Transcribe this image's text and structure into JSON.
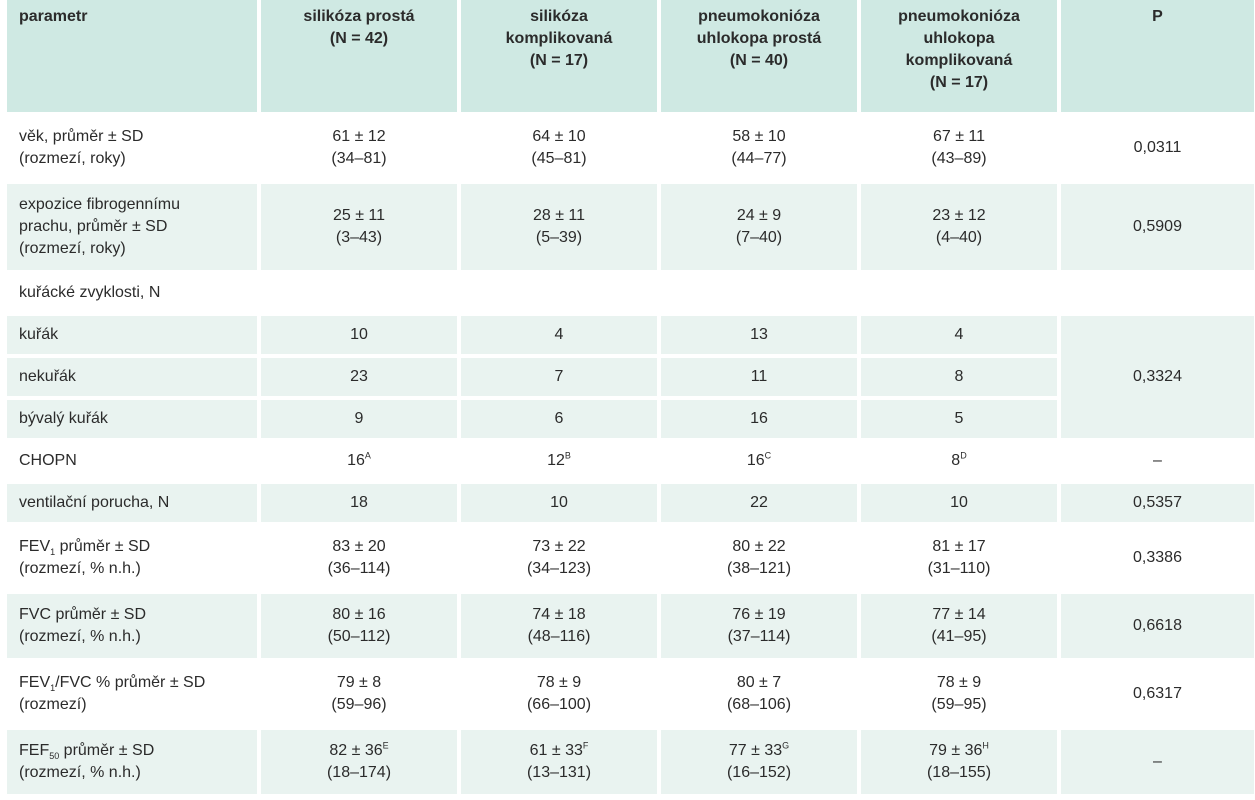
{
  "header": {
    "parameter": "parametr",
    "groups": [
      {
        "name_lines": [
          "silikóza prostá"
        ],
        "n": "(N = 42)"
      },
      {
        "name_lines": [
          "silikóza",
          "komplikovaná"
        ],
        "n": "(N = 17)"
      },
      {
        "name_lines": [
          "pneumokonióza",
          "uhlokopa prostá"
        ],
        "n": "(N = 40)"
      },
      {
        "name_lines": [
          "pneumokonióza",
          "uhlokopa",
          "komplikovaná"
        ],
        "n": "(N = 17)"
      }
    ],
    "p": "P"
  },
  "rows": {
    "age": {
      "label_lines": [
        "věk, průměr ± SD",
        "(rozmezí, roky)"
      ],
      "values": [
        [
          "61 ± 12",
          "(34–81)"
        ],
        [
          "64 ± 10",
          "(45–81)"
        ],
        [
          "58 ± 10",
          "(44–77)"
        ],
        [
          "67 ± 11",
          "(43–89)"
        ]
      ],
      "p": "0,0311"
    },
    "exposure": {
      "label_lines": [
        "expozice fibrogennímu",
        "prachu, průměr ± SD",
        "(rozmezí, roky)"
      ],
      "values": [
        [
          "25 ± 11",
          "(3–43)"
        ],
        [
          "28 ± 11",
          "(5–39)"
        ],
        [
          "24 ± 9",
          "(7–40)"
        ],
        [
          "23 ± 12",
          "(4–40)"
        ]
      ],
      "p": "0,5909"
    },
    "smoking_header": {
      "label": "kuřácké zvyklosti, N"
    },
    "smoker": {
      "label": "kuřák",
      "values": [
        "10",
        "4",
        "13",
        "4"
      ]
    },
    "nonsmoker": {
      "label": "nekuřák",
      "values": [
        "23",
        "7",
        "11",
        "8"
      ],
      "p": "0,3324"
    },
    "former": {
      "label": "bývalý kuřák",
      "values": [
        "9",
        "6",
        "16",
        "5"
      ]
    },
    "copd": {
      "label": "CHOPN",
      "values": [
        {
          "v": "16",
          "sup": "A"
        },
        {
          "v": "12",
          "sup": "B"
        },
        {
          "v": "16",
          "sup": "C"
        },
        {
          "v": "8",
          "sup": "D"
        }
      ],
      "p": "–"
    },
    "vent": {
      "label": "ventilační porucha, N",
      "values": [
        "18",
        "10",
        "22",
        "10"
      ],
      "p": "0,5357"
    },
    "fev1": {
      "label_pre": "FEV",
      "label_sub": "1",
      "label_post": " průměr ± SD",
      "label_line2": "(rozmezí, % n.h.)",
      "values": [
        [
          "83 ± 20",
          "(36–114)"
        ],
        [
          "73 ± 22",
          "(34–123)"
        ],
        [
          "80 ± 22",
          "(38–121)"
        ],
        [
          "81 ± 17",
          "(31–110)"
        ]
      ],
      "p": "0,3386"
    },
    "fvc": {
      "label_lines": [
        "FVC průměr ± SD",
        "(rozmezí, % n.h.)"
      ],
      "values": [
        [
          "80 ± 16",
          "(50–112)"
        ],
        [
          "74 ± 18",
          "(48–116)"
        ],
        [
          "76 ± 19",
          "(37–114)"
        ],
        [
          "77 ± 14",
          "(41–95)"
        ]
      ],
      "p": "0,6618"
    },
    "ratio": {
      "label_pre": "FEV",
      "label_sub": "1",
      "label_post": "/FVC % průměr ± SD",
      "label_line2": "(rozmezí)",
      "values": [
        [
          "79 ± 8",
          "(59–96)"
        ],
        [
          "78 ± 9",
          "(66–100)"
        ],
        [
          "80 ± 7",
          "(68–106)"
        ],
        [
          "78 ± 9",
          "(59–95)"
        ]
      ],
      "p": "0,6317"
    },
    "fef50": {
      "label_pre": "FEF",
      "label_sub": "50",
      "label_post": " průměr ± SD",
      "label_line2": "(rozmezí, % n.h.)",
      "values": [
        {
          "v": "82 ± 36",
          "sup": "E",
          "range": "(18–174)"
        },
        {
          "v": "61 ± 33",
          "sup": "F",
          "range": "(13–131)"
        },
        {
          "v": "77 ± 33",
          "sup": "G",
          "range": "(16–152)"
        },
        {
          "v": "79 ± 36",
          "sup": "H",
          "range": "(18–155)"
        }
      ],
      "p": "–"
    }
  }
}
